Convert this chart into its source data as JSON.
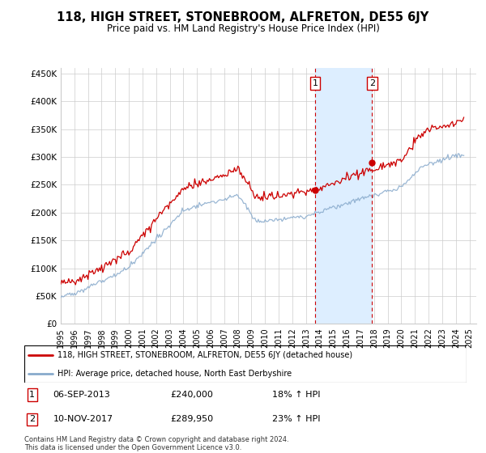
{
  "title": "118, HIGH STREET, STONEBROOM, ALFRETON, DE55 6JY",
  "subtitle": "Price paid vs. HM Land Registry's House Price Index (HPI)",
  "ylim": [
    0,
    460000
  ],
  "xlim_start": 1995.0,
  "xlim_end": 2025.5,
  "yticks": [
    0,
    50000,
    100000,
    150000,
    200000,
    250000,
    300000,
    350000,
    400000,
    450000
  ],
  "ytick_labels": [
    "£0",
    "£50K",
    "£100K",
    "£150K",
    "£200K",
    "£250K",
    "£300K",
    "£350K",
    "£400K",
    "£450K"
  ],
  "xticks": [
    1995,
    1996,
    1997,
    1998,
    1999,
    2000,
    2001,
    2002,
    2003,
    2004,
    2005,
    2006,
    2007,
    2008,
    2009,
    2010,
    2011,
    2012,
    2013,
    2014,
    2015,
    2016,
    2017,
    2018,
    2019,
    2020,
    2021,
    2022,
    2023,
    2024,
    2025
  ],
  "marker1_x": 2013.67,
  "marker2_x": 2017.86,
  "marker1_label": "1",
  "marker2_label": "2",
  "marker1_date": "06-SEP-2013",
  "marker1_price": "£240,000",
  "marker1_hpi": "18% ↑ HPI",
  "marker2_date": "10-NOV-2017",
  "marker2_price": "£289,950",
  "marker2_hpi": "23% ↑ HPI",
  "line1_label": "118, HIGH STREET, STONEBROOM, ALFRETON, DE55 6JY (detached house)",
  "line2_label": "HPI: Average price, detached house, North East Derbyshire",
  "line1_color": "#cc0000",
  "line2_color": "#88aacc",
  "shade_color": "#ddeeff",
  "footer": "Contains HM Land Registry data © Crown copyright and database right 2024.\nThis data is licensed under the Open Government Licence v3.0.",
  "marker1_prop_value": 240000,
  "marker2_prop_value": 289950
}
